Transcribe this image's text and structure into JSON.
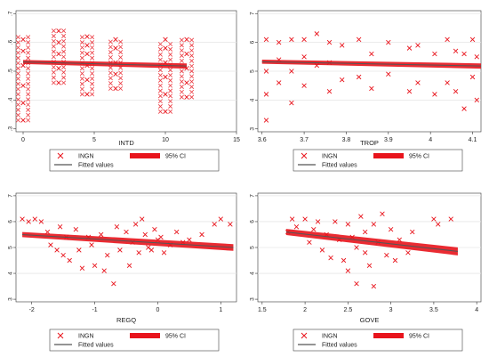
{
  "chart_data": [
    {
      "type": "scatter",
      "xlabel": "INTD",
      "ylabel": "",
      "xlim": [
        -0.5,
        15
      ],
      "ylim": [
        2.9,
        7.1
      ],
      "xticks": [
        "0",
        "5",
        "10",
        "15"
      ],
      "yticks": [
        ".3",
        ".4",
        ".5",
        ".6",
        ".7"
      ],
      "legend": {
        "points": "INGN",
        "ci": "95% CI",
        "line": "Fitted values"
      },
      "fitted": {
        "x": [
          0,
          11.5
        ],
        "y": [
          5.32,
          5.18
        ]
      },
      "ci_halfwidth": 0.07,
      "scatter_columns": [
        {
          "x": 0,
          "ymin": 3.3,
          "ymax": 6.2
        },
        {
          "x": 2.5,
          "ymin": 4.6,
          "ymax": 6.4
        },
        {
          "x": 4.5,
          "ymin": 4.2,
          "ymax": 6.2
        },
        {
          "x": 6.5,
          "ymin": 4.4,
          "ymax": 6.1
        },
        {
          "x": 10,
          "ymin": 3.6,
          "ymax": 6.1
        },
        {
          "x": 11.5,
          "ymin": 4.1,
          "ymax": 6.1
        }
      ],
      "series": [
        {
          "name": "INGN",
          "x": [
            0,
            0,
            0,
            0,
            0,
            0,
            2.5,
            2.5,
            2.5,
            2.5,
            2.5,
            4.5,
            4.5,
            4.5,
            4.5,
            4.5,
            4.5,
            6.5,
            6.5,
            6.5,
            6.5,
            6.5,
            10,
            10,
            10,
            10,
            10,
            10,
            11.5,
            11.5,
            11.5,
            11.5,
            11.5
          ],
          "y": [
            3.3,
            3.9,
            4.5,
            5.2,
            5.7,
            6.1,
            4.6,
            5.1,
            5.6,
            6.0,
            6.4,
            4.2,
            4.7,
            5.2,
            5.6,
            5.9,
            6.2,
            4.4,
            4.9,
            5.3,
            5.8,
            6.1,
            3.6,
            4.2,
            4.8,
            5.3,
            5.8,
            6.1,
            4.1,
            4.6,
            5.1,
            5.6,
            6.1
          ]
        }
      ]
    },
    {
      "type": "scatter",
      "xlabel": "TROP",
      "ylabel": "",
      "xlim": [
        3.59,
        4.12
      ],
      "ylim": [
        2.9,
        7.1
      ],
      "xticks": [
        "3.6",
        "3.7",
        "3.8",
        "3.9",
        "4",
        "4.1"
      ],
      "yticks": [
        "3",
        "4",
        "5",
        "6",
        "7"
      ],
      "legend": {
        "points": "INGN",
        "ci": "95% CI",
        "line": "Fitted values"
      },
      "fitted": {
        "x": [
          3.6,
          4.12
        ],
        "y": [
          5.33,
          5.18
        ]
      },
      "ci_halfwidth": 0.07,
      "series": [
        {
          "name": "INGN",
          "x": [
            3.61,
            3.61,
            3.61,
            3.61,
            3.64,
            3.64,
            3.64,
            3.67,
            3.67,
            3.67,
            3.7,
            3.7,
            3.7,
            3.73,
            3.73,
            3.76,
            3.76,
            3.76,
            3.79,
            3.79,
            3.83,
            3.83,
            3.86,
            3.86,
            3.9,
            3.9,
            3.95,
            3.95,
            3.97,
            3.97,
            4.01,
            4.01,
            4.04,
            4.04,
            4.06,
            4.06,
            4.08,
            4.08,
            4.1,
            4.1,
            4.11,
            4.11
          ],
          "y": [
            3.3,
            4.2,
            5.0,
            6.1,
            4.6,
            5.4,
            6.0,
            3.9,
            5.0,
            6.1,
            4.5,
            5.5,
            6.1,
            5.2,
            6.3,
            4.3,
            5.3,
            6.0,
            4.7,
            5.9,
            4.8,
            6.1,
            4.4,
            5.6,
            4.9,
            6.0,
            4.3,
            5.8,
            4.6,
            5.9,
            4.2,
            5.6,
            4.6,
            6.1,
            4.3,
            5.7,
            3.7,
            5.6,
            4.8,
            6.1,
            4.0,
            5.5
          ]
        }
      ]
    },
    {
      "type": "scatter",
      "xlabel": "REGQ",
      "ylabel": "",
      "xlim": [
        -2.25,
        1.25
      ],
      "ylim": [
        2.9,
        7.1
      ],
      "xticks": [
        "-2",
        "-1",
        "0",
        "1"
      ],
      "yticks": [
        "3",
        "4",
        "5",
        "6",
        "7"
      ],
      "legend": {
        "points": "INGN",
        "ci": "95% CI",
        "line": "Fitted values"
      },
      "fitted": {
        "x": [
          -2.15,
          1.2
        ],
        "y": [
          5.5,
          5.0
        ]
      },
      "ci_halfwidth": 0.1,
      "series": [
        {
          "name": "INGN",
          "x": [
            -2.15,
            -2.05,
            -1.95,
            -1.85,
            -1.75,
            -1.7,
            -1.6,
            -1.55,
            -1.5,
            -1.45,
            -1.4,
            -1.3,
            -1.25,
            -1.2,
            -1.1,
            -1.05,
            -1.0,
            -0.9,
            -0.85,
            -0.8,
            -0.7,
            -0.65,
            -0.6,
            -0.5,
            -0.45,
            -0.4,
            -0.35,
            -0.3,
            -0.25,
            -0.2,
            -0.15,
            -0.1,
            -0.05,
            0.0,
            0.05,
            0.1,
            0.2,
            0.3,
            0.4,
            0.5,
            0.7,
            0.9,
            1.0,
            1.15
          ],
          "y": [
            6.1,
            6.0,
            6.1,
            6.0,
            5.6,
            5.1,
            4.9,
            5.8,
            4.7,
            5.4,
            4.5,
            5.7,
            4.9,
            4.2,
            5.4,
            5.1,
            4.3,
            5.5,
            4.1,
            4.7,
            3.6,
            5.8,
            4.9,
            5.6,
            4.3,
            5.2,
            5.9,
            4.8,
            6.1,
            5.5,
            5.0,
            4.9,
            5.7,
            5.3,
            5.4,
            4.8,
            5.1,
            5.6,
            5.2,
            5.3,
            5.5,
            5.9,
            6.1,
            5.9
          ]
        }
      ]
    },
    {
      "type": "scatter",
      "xlabel": "GOVE",
      "ylabel": "",
      "xlim": [
        1.45,
        4.05
      ],
      "ylim": [
        2.9,
        7.1
      ],
      "xticks": [
        "1.5",
        "2",
        "2.5",
        "3",
        "3.5",
        "4"
      ],
      "yticks": [
        "3",
        "4",
        "5",
        "6",
        "7"
      ],
      "legend": {
        "points": "INGN",
        "ci": "95% CI",
        "line": "Fitted values"
      },
      "fitted": {
        "x": [
          1.78,
          3.78
        ],
        "y": [
          5.6,
          4.85
        ]
      },
      "ci_halfwidth": 0.12,
      "series": [
        {
          "name": "INGN",
          "x": [
            1.8,
            1.85,
            1.9,
            2.0,
            2.05,
            2.1,
            2.15,
            2.2,
            2.25,
            2.3,
            2.35,
            2.4,
            2.45,
            2.5,
            2.5,
            2.55,
            2.6,
            2.6,
            2.65,
            2.7,
            2.7,
            2.75,
            2.8,
            2.8,
            2.85,
            2.9,
            2.95,
            3.0,
            3.05,
            3.1,
            3.2,
            3.25,
            3.5,
            3.55,
            3.7
          ],
          "y": [
            5.6,
            6.1,
            5.8,
            6.1,
            5.2,
            5.7,
            6.0,
            4.9,
            5.5,
            4.6,
            6.0,
            5.3,
            4.5,
            5.9,
            4.1,
            5.4,
            5.0,
            3.6,
            6.2,
            4.8,
            5.6,
            4.3,
            5.9,
            3.5,
            5.2,
            6.3,
            4.7,
            5.7,
            4.5,
            5.3,
            4.8,
            5.6,
            6.1,
            5.9,
            6.1
          ]
        }
      ]
    }
  ]
}
